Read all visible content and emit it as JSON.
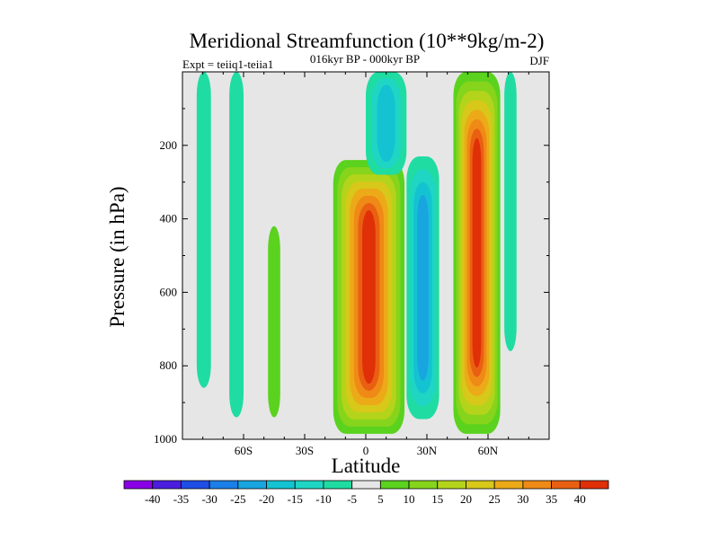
{
  "chart_data": {
    "type": "heatmap",
    "title": "Meridional Streamfunction (10**9kg/m-2)",
    "subtitle": "016kyr BP - 000kyr BP",
    "left_label": "Expt = teiiq1-teiia1",
    "right_label": "DJF",
    "xlabel": "Latitude",
    "ylabel": "Pressure (in hPa)",
    "xlim": [
      -90,
      90
    ],
    "ylim": [
      1000,
      0
    ],
    "x_ticks": [
      {
        "value": -60,
        "label": "60S"
      },
      {
        "value": -30,
        "label": "30S"
      },
      {
        "value": 0,
        "label": "0"
      },
      {
        "value": 30,
        "label": "30N"
      },
      {
        "value": 60,
        "label": "60N"
      }
    ],
    "y_ticks": [
      200,
      400,
      600,
      800,
      1000
    ],
    "colorbar": {
      "labels": [
        "-40",
        "-35",
        "-30",
        "-25",
        "-20",
        "-15",
        "-10",
        "-5",
        "5",
        "10",
        "15",
        "20",
        "25",
        "30",
        "35",
        "40"
      ],
      "colors": [
        "#8a00e6",
        "#4b1ee0",
        "#1e4ee6",
        "#1a7fe8",
        "#18a5e0",
        "#14c3d2",
        "#1ed6c3",
        "#1fdca2",
        "#e6e6e6",
        "#5ad21e",
        "#86d41c",
        "#b3d41a",
        "#d7c81a",
        "#ecaa18",
        "#ef8a16",
        "#ea6012",
        "#df3008"
      ]
    },
    "features": [
      {
        "name": "cell-sh-polar",
        "sign": "negative",
        "lat_range": [
          -83,
          -76
        ],
        "p_range": [
          0,
          860
        ],
        "max_abs": 5
      },
      {
        "name": "cell-sh-60s",
        "sign": "negative",
        "lat_range": [
          -67,
          -60
        ],
        "p_range": [
          0,
          940
        ],
        "max_abs": 5
      },
      {
        "name": "cell-sh-40s",
        "sign": "positive",
        "lat_range": [
          -48,
          -42
        ],
        "p_range": [
          420,
          940
        ],
        "max_abs": 5
      },
      {
        "name": "cell-tropical-main",
        "sign": "positive",
        "lat_range": [
          -16,
          19
        ],
        "p_range": [
          240,
          985
        ],
        "max_abs": 40
      },
      {
        "name": "cell-upper-tropical",
        "sign": "negative",
        "lat_range": [
          0,
          20
        ],
        "p_range": [
          0,
          280
        ],
        "max_abs": 15
      },
      {
        "name": "cell-nh-subtropical",
        "sign": "negative",
        "lat_range": [
          20,
          36
        ],
        "p_range": [
          230,
          945
        ],
        "max_abs": 20
      },
      {
        "name": "cell-nh-midlat",
        "sign": "positive",
        "lat_range": [
          43,
          66
        ],
        "p_range": [
          0,
          985
        ],
        "max_abs": 40
      },
      {
        "name": "cell-nh-polar",
        "sign": "negative",
        "lat_range": [
          68,
          74
        ],
        "p_range": [
          0,
          760
        ],
        "max_abs": 5
      }
    ]
  }
}
